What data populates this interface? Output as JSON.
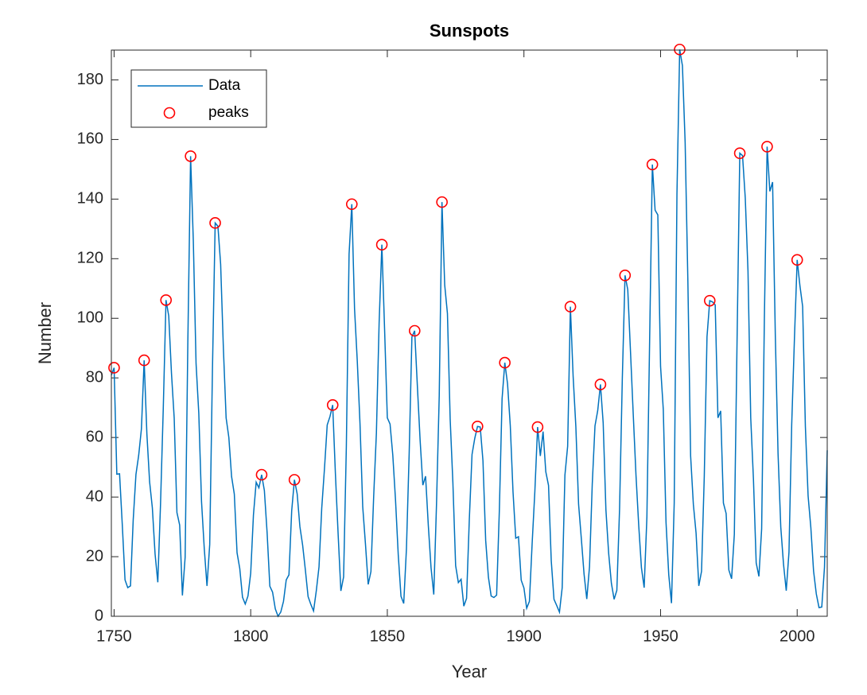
{
  "chart_data": {
    "type": "line",
    "title": "Sunspots",
    "xlabel": "Year",
    "ylabel": "Number",
    "x": [
      1749,
      1750,
      1751,
      1752,
      1753,
      1754,
      1755,
      1756,
      1757,
      1758,
      1759,
      1760,
      1761,
      1762,
      1763,
      1764,
      1765,
      1766,
      1767,
      1768,
      1769,
      1770,
      1771,
      1772,
      1773,
      1774,
      1775,
      1776,
      1777,
      1778,
      1779,
      1780,
      1781,
      1782,
      1783,
      1784,
      1785,
      1786,
      1787,
      1788,
      1789,
      1790,
      1791,
      1792,
      1793,
      1794,
      1795,
      1796,
      1797,
      1798,
      1799,
      1800,
      1801,
      1802,
      1803,
      1804,
      1805,
      1806,
      1807,
      1808,
      1809,
      1810,
      1811,
      1812,
      1813,
      1814,
      1815,
      1816,
      1817,
      1818,
      1819,
      1820,
      1821,
      1822,
      1823,
      1824,
      1825,
      1826,
      1827,
      1828,
      1829,
      1830,
      1831,
      1832,
      1833,
      1834,
      1835,
      1836,
      1837,
      1838,
      1839,
      1840,
      1841,
      1842,
      1843,
      1844,
      1845,
      1846,
      1847,
      1848,
      1849,
      1850,
      1851,
      1852,
      1853,
      1854,
      1855,
      1856,
      1857,
      1858,
      1859,
      1860,
      1861,
      1862,
      1863,
      1864,
      1865,
      1866,
      1867,
      1868,
      1869,
      1870,
      1871,
      1872,
      1873,
      1874,
      1875,
      1876,
      1877,
      1878,
      1879,
      1880,
      1881,
      1882,
      1883,
      1884,
      1885,
      1886,
      1887,
      1888,
      1889,
      1890,
      1891,
      1892,
      1893,
      1894,
      1895,
      1896,
      1897,
      1898,
      1899,
      1900,
      1901,
      1902,
      1903,
      1904,
      1905,
      1906,
      1907,
      1908,
      1909,
      1910,
      1911,
      1912,
      1913,
      1914,
      1915,
      1916,
      1917,
      1918,
      1919,
      1920,
      1921,
      1922,
      1923,
      1924,
      1925,
      1926,
      1927,
      1928,
      1929,
      1930,
      1931,
      1932,
      1933,
      1934,
      1935,
      1936,
      1937,
      1938,
      1939,
      1940,
      1941,
      1942,
      1943,
      1944,
      1945,
      1946,
      1947,
      1948,
      1949,
      1950,
      1951,
      1952,
      1953,
      1954,
      1955,
      1956,
      1957,
      1958,
      1959,
      1960,
      1961,
      1962,
      1963,
      1964,
      1965,
      1966,
      1967,
      1968,
      1969,
      1970,
      1971,
      1972,
      1973,
      1974,
      1975,
      1976,
      1977,
      1978,
      1979,
      1980,
      1981,
      1982,
      1983,
      1984,
      1985,
      1986,
      1987,
      1988,
      1989,
      1990,
      1991,
      1992,
      1993,
      1994,
      1995,
      1996,
      1997,
      1998,
      1999,
      2000,
      2001,
      2002,
      2003,
      2004,
      2005,
      2006,
      2007,
      2008,
      2009,
      2010,
      2011
    ],
    "series": [
      {
        "name": "Data",
        "color": "#0072bd",
        "values": [
          80.9,
          83.4,
          47.7,
          47.8,
          30.7,
          12.2,
          9.6,
          10.2,
          32.4,
          47.6,
          54.0,
          62.9,
          85.9,
          61.2,
          45.1,
          36.4,
          20.9,
          11.4,
          37.8,
          69.8,
          106.1,
          100.8,
          81.6,
          66.5,
          34.8,
          30.6,
          7.0,
          19.8,
          92.5,
          154.4,
          125.9,
          84.8,
          68.1,
          38.5,
          22.8,
          10.2,
          24.1,
          82.9,
          132.0,
          130.9,
          118.1,
          89.9,
          66.6,
          60.0,
          46.9,
          41.0,
          21.3,
          16.0,
          6.4,
          4.1,
          6.8,
          14.5,
          34.0,
          45.0,
          43.1,
          47.5,
          42.2,
          28.1,
          10.1,
          8.1,
          2.5,
          0.0,
          1.4,
          5.0,
          12.2,
          13.9,
          35.4,
          45.8,
          41.1,
          30.1,
          23.9,
          15.6,
          6.6,
          4.0,
          1.8,
          8.5,
          16.6,
          36.3,
          49.6,
          64.2,
          67.0,
          70.9,
          47.8,
          27.5,
          8.5,
          13.2,
          56.9,
          121.5,
          138.3,
          103.2,
          85.7,
          64.6,
          36.7,
          24.2,
          10.7,
          15.0,
          40.1,
          61.5,
          98.5,
          124.7,
          96.3,
          66.6,
          64.5,
          54.1,
          39.0,
          20.6,
          6.7,
          4.3,
          22.7,
          54.8,
          93.8,
          95.8,
          77.2,
          59.1,
          44.0,
          47.0,
          30.5,
          16.3,
          7.3,
          37.6,
          74.0,
          139.0,
          111.2,
          101.6,
          66.2,
          44.7,
          17.0,
          11.3,
          12.4,
          3.4,
          6.0,
          32.3,
          54.3,
          59.7,
          63.7,
          63.5,
          52.2,
          25.4,
          13.1,
          6.8,
          6.3,
          7.1,
          35.6,
          73.0,
          85.1,
          78.0,
          64.0,
          41.8,
          26.2,
          26.7,
          12.1,
          9.5,
          2.7,
          5.0,
          24.4,
          42.0,
          63.5,
          53.8,
          62.0,
          48.5,
          43.9,
          18.6,
          5.7,
          3.6,
          1.4,
          9.6,
          47.4,
          57.1,
          103.9,
          80.6,
          63.6,
          37.6,
          26.1,
          14.2,
          5.8,
          16.7,
          44.3,
          63.9,
          69.0,
          77.8,
          64.9,
          35.7,
          21.2,
          11.1,
          5.7,
          8.7,
          36.1,
          79.7,
          114.4,
          109.6,
          88.8,
          67.8,
          47.5,
          30.6,
          16.3,
          9.6,
          33.2,
          92.6,
          151.6,
          136.3,
          134.7,
          83.9,
          69.4,
          31.5,
          13.9,
          4.4,
          38.0,
          141.7,
          190.2,
          184.8,
          159.0,
          112.3,
          53.9,
          37.6,
          27.9,
          10.2,
          15.1,
          47.0,
          93.8,
          105.9,
          105.5,
          104.5,
          66.6,
          68.9,
          38.0,
          34.5,
          15.5,
          12.6,
          27.5,
          92.5,
          155.4,
          154.6,
          140.4,
          115.9,
          66.6,
          45.9,
          17.9,
          13.4,
          29.4,
          100.2,
          157.6,
          142.6,
          145.7,
          94.3,
          54.6,
          29.9,
          17.5,
          8.6,
          21.5,
          64.3,
          93.3,
          119.6,
          111.0,
          104.0,
          63.7,
          40.4,
          29.8,
          15.2,
          7.5,
          2.9,
          3.1,
          16.5,
          55.7
        ]
      },
      {
        "name": "peaks",
        "color": "#ff0000",
        "marker": "o",
        "x": [
          1750,
          1761,
          1769,
          1778,
          1787,
          1804,
          1816,
          1830,
          1837,
          1848,
          1860,
          1870,
          1883,
          1893,
          1905,
          1917,
          1928,
          1937,
          1947,
          1957,
          1968,
          1979,
          1989,
          2000
        ],
        "values": [
          83.4,
          85.9,
          106.1,
          154.4,
          132.0,
          47.5,
          45.8,
          70.9,
          138.3,
          124.7,
          95.8,
          139.0,
          63.7,
          85.1,
          63.5,
          103.9,
          77.8,
          114.4,
          151.6,
          190.2,
          105.9,
          155.4,
          157.6,
          119.6
        ]
      }
    ],
    "xlim": [
      1749,
      2011
    ],
    "xticks": [
      1750,
      1800,
      1850,
      1900,
      1950,
      2000
    ],
    "ylim": [
      0,
      190
    ],
    "yticks": [
      0,
      20,
      40,
      60,
      80,
      100,
      120,
      140,
      160,
      180
    ],
    "legend": "northwest"
  }
}
